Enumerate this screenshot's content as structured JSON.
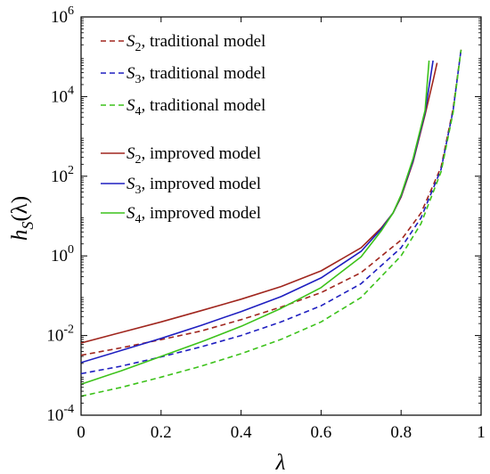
{
  "chart_data": {
    "type": "line",
    "title": "",
    "xlabel": "λ",
    "ylabel": {
      "base": "h",
      "sub": "S",
      "arg": "(λ)"
    },
    "xlim": [
      0,
      1
    ],
    "ylim_log10": [
      -4,
      6
    ],
    "yscale": "log",
    "grid": false,
    "legend_placement": "top-left",
    "x_ticks": [
      {
        "v": 0,
        "label": "0"
      },
      {
        "v": 0.2,
        "label": "0.2"
      },
      {
        "v": 0.4,
        "label": "0.4"
      },
      {
        "v": 0.6,
        "label": "0.6"
      },
      {
        "v": 0.8,
        "label": "0.8"
      },
      {
        "v": 1,
        "label": "1"
      }
    ],
    "y_ticks": [
      {
        "exp": -4,
        "base": "10",
        "sup": "-4"
      },
      {
        "exp": -2,
        "base": "10",
        "sup": "-2"
      },
      {
        "exp": 0,
        "base": "10",
        "sup": "0"
      },
      {
        "exp": 2,
        "base": "10",
        "sup": "2"
      },
      {
        "exp": 4,
        "base": "10",
        "sup": "4"
      },
      {
        "exp": 6,
        "base": "10",
        "sup": "6"
      }
    ],
    "series": [
      {
        "name": "traditional model",
        "symbol": "S",
        "subscript": "2",
        "color": "#a0261e",
        "dashed": true,
        "x": [
          0,
          0.1,
          0.2,
          0.3,
          0.4,
          0.5,
          0.6,
          0.7,
          0.8,
          0.85,
          0.9,
          0.93,
          0.95
        ],
        "y": [
          0.0032,
          0.0049,
          0.0079,
          0.013,
          0.025,
          0.052,
          0.12,
          0.38,
          2.5,
          12,
          170,
          5000,
          150000
        ]
      },
      {
        "name": "traditional model",
        "symbol": "S",
        "subscript": "3",
        "color": "#1f1fc0",
        "dashed": true,
        "x": [
          0,
          0.1,
          0.2,
          0.3,
          0.4,
          0.5,
          0.6,
          0.7,
          0.8,
          0.85,
          0.9,
          0.93,
          0.95
        ],
        "y": [
          0.0011,
          0.0017,
          0.0029,
          0.0052,
          0.01,
          0.022,
          0.056,
          0.2,
          1.6,
          9,
          150,
          4500,
          150000
        ]
      },
      {
        "name": "traditional model",
        "symbol": "S",
        "subscript": "4",
        "color": "#3cc21a",
        "dashed": true,
        "x": [
          0,
          0.1,
          0.2,
          0.3,
          0.4,
          0.5,
          0.6,
          0.7,
          0.8,
          0.85,
          0.9,
          0.93,
          0.95
        ],
        "y": [
          0.0003,
          0.0005,
          0.0009,
          0.0017,
          0.0035,
          0.008,
          0.022,
          0.09,
          1.0,
          6.5,
          130,
          4000,
          150000
        ]
      },
      {
        "name": "improved model",
        "symbol": "S",
        "subscript": "2",
        "color": "#a0261e",
        "dashed": false,
        "x": [
          0,
          0.1,
          0.2,
          0.3,
          0.4,
          0.5,
          0.6,
          0.7,
          0.75,
          0.78,
          0.8,
          0.83,
          0.86,
          0.88,
          0.89
        ],
        "y": [
          0.0065,
          0.012,
          0.022,
          0.042,
          0.082,
          0.17,
          0.42,
          1.6,
          5,
          12,
          30,
          230,
          3500,
          25000,
          70000
        ]
      },
      {
        "name": "improved model",
        "symbol": "S",
        "subscript": "3",
        "color": "#1f1fc0",
        "dashed": false,
        "x": [
          0,
          0.1,
          0.2,
          0.3,
          0.4,
          0.5,
          0.6,
          0.7,
          0.75,
          0.78,
          0.8,
          0.83,
          0.86,
          0.88
        ],
        "y": [
          0.0021,
          0.0042,
          0.0085,
          0.018,
          0.04,
          0.095,
          0.28,
          1.3,
          4.7,
          12,
          32,
          250,
          4000,
          80000
        ]
      },
      {
        "name": "improved model",
        "symbol": "S",
        "subscript": "4",
        "color": "#3cc21a",
        "dashed": false,
        "x": [
          0,
          0.1,
          0.2,
          0.3,
          0.4,
          0.5,
          0.6,
          0.7,
          0.75,
          0.78,
          0.8,
          0.83,
          0.86,
          0.87
        ],
        "y": [
          0.0006,
          0.0013,
          0.003,
          0.0069,
          0.017,
          0.048,
          0.16,
          0.95,
          4.2,
          12,
          34,
          280,
          4500,
          80000
        ]
      }
    ]
  }
}
